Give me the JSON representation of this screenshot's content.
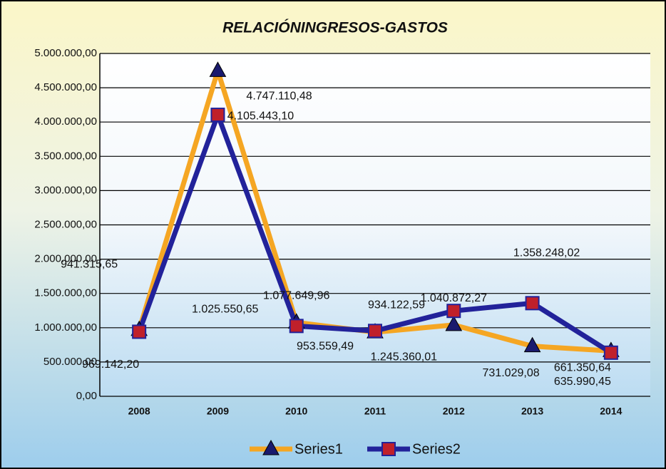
{
  "chart_data": {
    "type": "line",
    "title": "RELACIÓNINGRESOS-GASTOS",
    "categories": [
      "2008",
      "2009",
      "2010",
      "2011",
      "2012",
      "2013",
      "2014"
    ],
    "series": [
      {
        "name": "Series1",
        "color": "#f5a623",
        "marker": "triangle",
        "marker_color": "#1a1a6e",
        "values": [
          969142.2,
          4747110.48,
          1077649.96,
          934122.59,
          1040872.27,
          731029.08,
          661350.64
        ],
        "value_labels": [
          "969.142,20",
          "4.747.110,48",
          "1.077.649,96",
          "934.122,59",
          "1.040.872,27",
          "731.029,08",
          "661.350,64"
        ]
      },
      {
        "name": "Series2",
        "color": "#22229a",
        "marker": "square",
        "marker_color": "#c0202a",
        "values": [
          941315.65,
          4105443.1,
          1025550.65,
          953559.49,
          1245360.01,
          1358248.02,
          635990.45
        ],
        "value_labels": [
          "941.315,65",
          "4.105.443,10",
          "1.025.550,65",
          "953.559,49",
          "1.245.360,01",
          "1.358.248,02",
          "635.990,45"
        ]
      }
    ],
    "ylim": [
      0,
      5000000
    ],
    "yticks": [
      {
        "value": 0,
        "label": "0,00"
      },
      {
        "value": 500000,
        "label": "500.000,00"
      },
      {
        "value": 1000000,
        "label": "1.000.000,00"
      },
      {
        "value": 1500000,
        "label": "1.500.000,00"
      },
      {
        "value": 2000000,
        "label": "2.000.000,00"
      },
      {
        "value": 2500000,
        "label": "2.500.000,00"
      },
      {
        "value": 3000000,
        "label": "3.000.000,00"
      },
      {
        "value": 3500000,
        "label": "3.500.000,00"
      },
      {
        "value": 4000000,
        "label": "4.000.000,00"
      },
      {
        "value": 4500000,
        "label": "4.500.000,00"
      },
      {
        "value": 5000000,
        "label": "5.000.000,00"
      }
    ],
    "grid": true,
    "legend": "bottom"
  }
}
